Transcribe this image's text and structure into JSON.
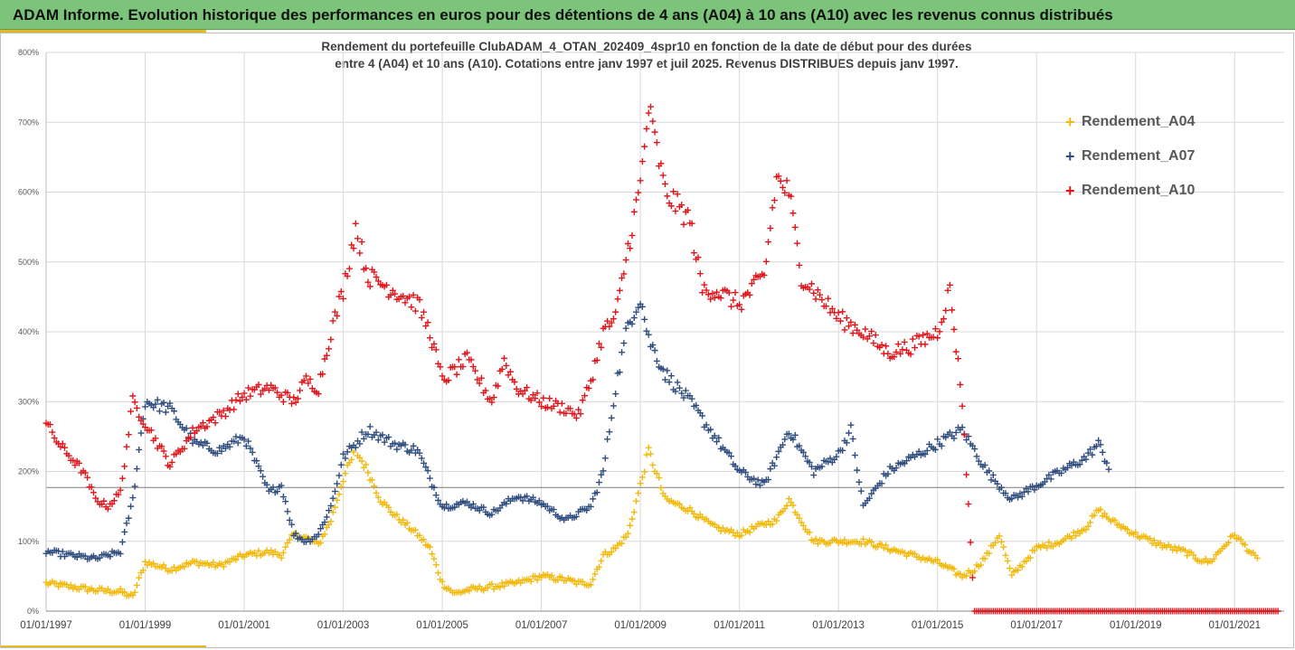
{
  "page": {
    "title": "ADAM Informe. Evolution historique des performances en euros pour des détentions de 4 ans (A04) à 10 ans (A10) avec les revenus connus distribués"
  },
  "chart_data": {
    "type": "scatter",
    "title_line1": "Rendement du portefeuille ClubADAM_4_OTAN_202409_4spr10  en fonction de la date de début pour des durées",
    "title_line2": "entre 4 (A04) et 10 ans (A10). Cotations entre janv 1997 et juil 2025. Revenus DISTRIBUES depuis janv 1997.",
    "xlim": [
      "1997-01-01",
      "2022-01-01"
    ],
    "ylim": [
      0,
      800
    ],
    "yticks": [
      0,
      100,
      200,
      300,
      400,
      500,
      600,
      700,
      800
    ],
    "ytick_labels": [
      "0%",
      "100%",
      "200%",
      "300%",
      "400%",
      "500%",
      "600%",
      "700%",
      "800%"
    ],
    "xtick_labels": [
      "01/01/1997",
      "01/01/1999",
      "01/01/2001",
      "01/01/2003",
      "01/01/2005",
      "01/01/2007",
      "01/01/2009",
      "01/01/2011",
      "01/01/2013",
      "01/01/2015",
      "01/01/2017",
      "01/01/2019",
      "01/01/2021"
    ],
    "grid": true,
    "reference_line_y": 177,
    "legend_position": "right",
    "marker": "+",
    "series": [
      {
        "name": "Rendement_A04",
        "color": "#f2b90c",
        "x": [
          "1997-01",
          "1997-07",
          "1998-01",
          "1998-07",
          "1998-10",
          "1999-01",
          "1999-07",
          "2000-01",
          "2000-07",
          "2001-01",
          "2001-07",
          "2001-10",
          "2002-01",
          "2002-04",
          "2002-07",
          "2002-10",
          "2003-01",
          "2003-04",
          "2003-07",
          "2003-10",
          "2004-01",
          "2004-07",
          "2004-10",
          "2005-01",
          "2005-04",
          "2005-07",
          "2006-01",
          "2006-07",
          "2007-01",
          "2007-07",
          "2007-10",
          "2008-01",
          "2008-04",
          "2008-07",
          "2008-10",
          "2009-01",
          "2009-03",
          "2009-07",
          "2010-01",
          "2010-07",
          "2011-01",
          "2011-07",
          "2011-10",
          "2012-01",
          "2012-07",
          "2013-01",
          "2013-07",
          "2014-01",
          "2014-07",
          "2015-01",
          "2015-07",
          "2015-10",
          "2016-01",
          "2016-04",
          "2016-07",
          "2017-01",
          "2017-07",
          "2018-01",
          "2018-04",
          "2018-07",
          "2019-01",
          "2019-07",
          "2020-01",
          "2020-04",
          "2020-07",
          "2021-01",
          "2021-07"
        ],
        "values": [
          40,
          35,
          30,
          28,
          20,
          70,
          60,
          70,
          65,
          80,
          85,
          80,
          110,
          105,
          95,
          130,
          190,
          230,
          200,
          160,
          140,
          110,
          90,
          40,
          25,
          30,
          35,
          40,
          50,
          45,
          40,
          40,
          80,
          90,
          110,
          180,
          230,
          160,
          145,
          120,
          110,
          125,
          130,
          160,
          100,
          100,
          100,
          90,
          80,
          70,
          50,
          60,
          80,
          110,
          50,
          90,
          100,
          120,
          145,
          130,
          110,
          95,
          85,
          75,
          70,
          110,
          70
        ]
      },
      {
        "name": "Rendement_A07",
        "color": "#2f4d7e",
        "x": [
          "1997-01",
          "1997-07",
          "1998-01",
          "1998-04",
          "1998-07",
          "1998-10",
          "1999-01",
          "1999-07",
          "2000-01",
          "2000-07",
          "2001-01",
          "2001-07",
          "2001-10",
          "2002-01",
          "2002-04",
          "2002-07",
          "2002-10",
          "2003-01",
          "2003-07",
          "2004-01",
          "2004-07",
          "2005-01",
          "2005-07",
          "2006-01",
          "2006-07",
          "2007-01",
          "2007-07",
          "2008-01",
          "2008-04",
          "2008-07",
          "2008-10",
          "2009-01",
          "2009-03",
          "2009-07",
          "2010-01",
          "2010-07",
          "2011-01",
          "2011-07",
          "2012-01",
          "2012-07",
          "2013-01",
          "2013-04",
          "2013-07",
          "2014-01",
          "2014-07",
          "2015-01",
          "2015-07",
          "2016-01",
          "2016-07",
          "2017-01",
          "2017-07",
          "2018-01",
          "2018-04",
          "2018-07"
        ],
        "values": [
          85,
          80,
          75,
          80,
          85,
          160,
          300,
          290,
          240,
          230,
          250,
          170,
          180,
          110,
          100,
          110,
          150,
          220,
          260,
          240,
          230,
          150,
          155,
          140,
          165,
          155,
          130,
          150,
          200,
          320,
          410,
          450,
          390,
          340,
          300,
          250,
          200,
          180,
          260,
          200,
          225,
          260,
          150,
          200,
          220,
          240,
          260,
          200,
          160,
          180,
          200,
          220,
          240,
          200
        ]
      },
      {
        "name": "Rendement_A10",
        "color": "#e0151b",
        "x": [
          "1997-01",
          "1997-04",
          "1997-07",
          "1997-10",
          "1998-01",
          "1998-04",
          "1998-07",
          "1998-10",
          "1999-01",
          "1999-07",
          "2000-01",
          "2000-07",
          "2001-01",
          "2001-07",
          "2002-01",
          "2002-04",
          "2002-07",
          "2002-10",
          "2003-01",
          "2003-04",
          "2003-07",
          "2004-01",
          "2004-07",
          "2004-10",
          "2005-01",
          "2005-07",
          "2006-01",
          "2006-04",
          "2006-07",
          "2007-01",
          "2007-07",
          "2007-10",
          "2008-01",
          "2008-04",
          "2008-07",
          "2008-10",
          "2009-01",
          "2009-03",
          "2009-07",
          "2010-01",
          "2010-04",
          "2010-07",
          "2011-01",
          "2011-07",
          "2011-10",
          "2012-01",
          "2012-04",
          "2012-07",
          "2013-01",
          "2013-07",
          "2014-01",
          "2014-07",
          "2015-01",
          "2015-04",
          "2015-07",
          "2015-10",
          "2016-01",
          "2016-07",
          "2017-01",
          "2017-07",
          "2018-01",
          "2018-07",
          "2019-01",
          "2019-07",
          "2020-01",
          "2020-07",
          "2021-01",
          "2021-07",
          "2021-12"
        ],
        "values": [
          270,
          240,
          220,
          200,
          160,
          150,
          170,
          300,
          270,
          210,
          260,
          280,
          310,
          320,
          300,
          330,
          320,
          400,
          460,
          550,
          480,
          460,
          440,
          400,
          330,
          360,
          300,
          360,
          320,
          300,
          290,
          280,
          330,
          400,
          420,
          520,
          610,
          720,
          600,
          560,
          460,
          460,
          440,
          480,
          620,
          600,
          480,
          460,
          420,
          400,
          370,
          380,
          400,
          460,
          300,
          0,
          0,
          0,
          0,
          0,
          0,
          0,
          0,
          0,
          0,
          0,
          0,
          0,
          0
        ]
      }
    ]
  }
}
